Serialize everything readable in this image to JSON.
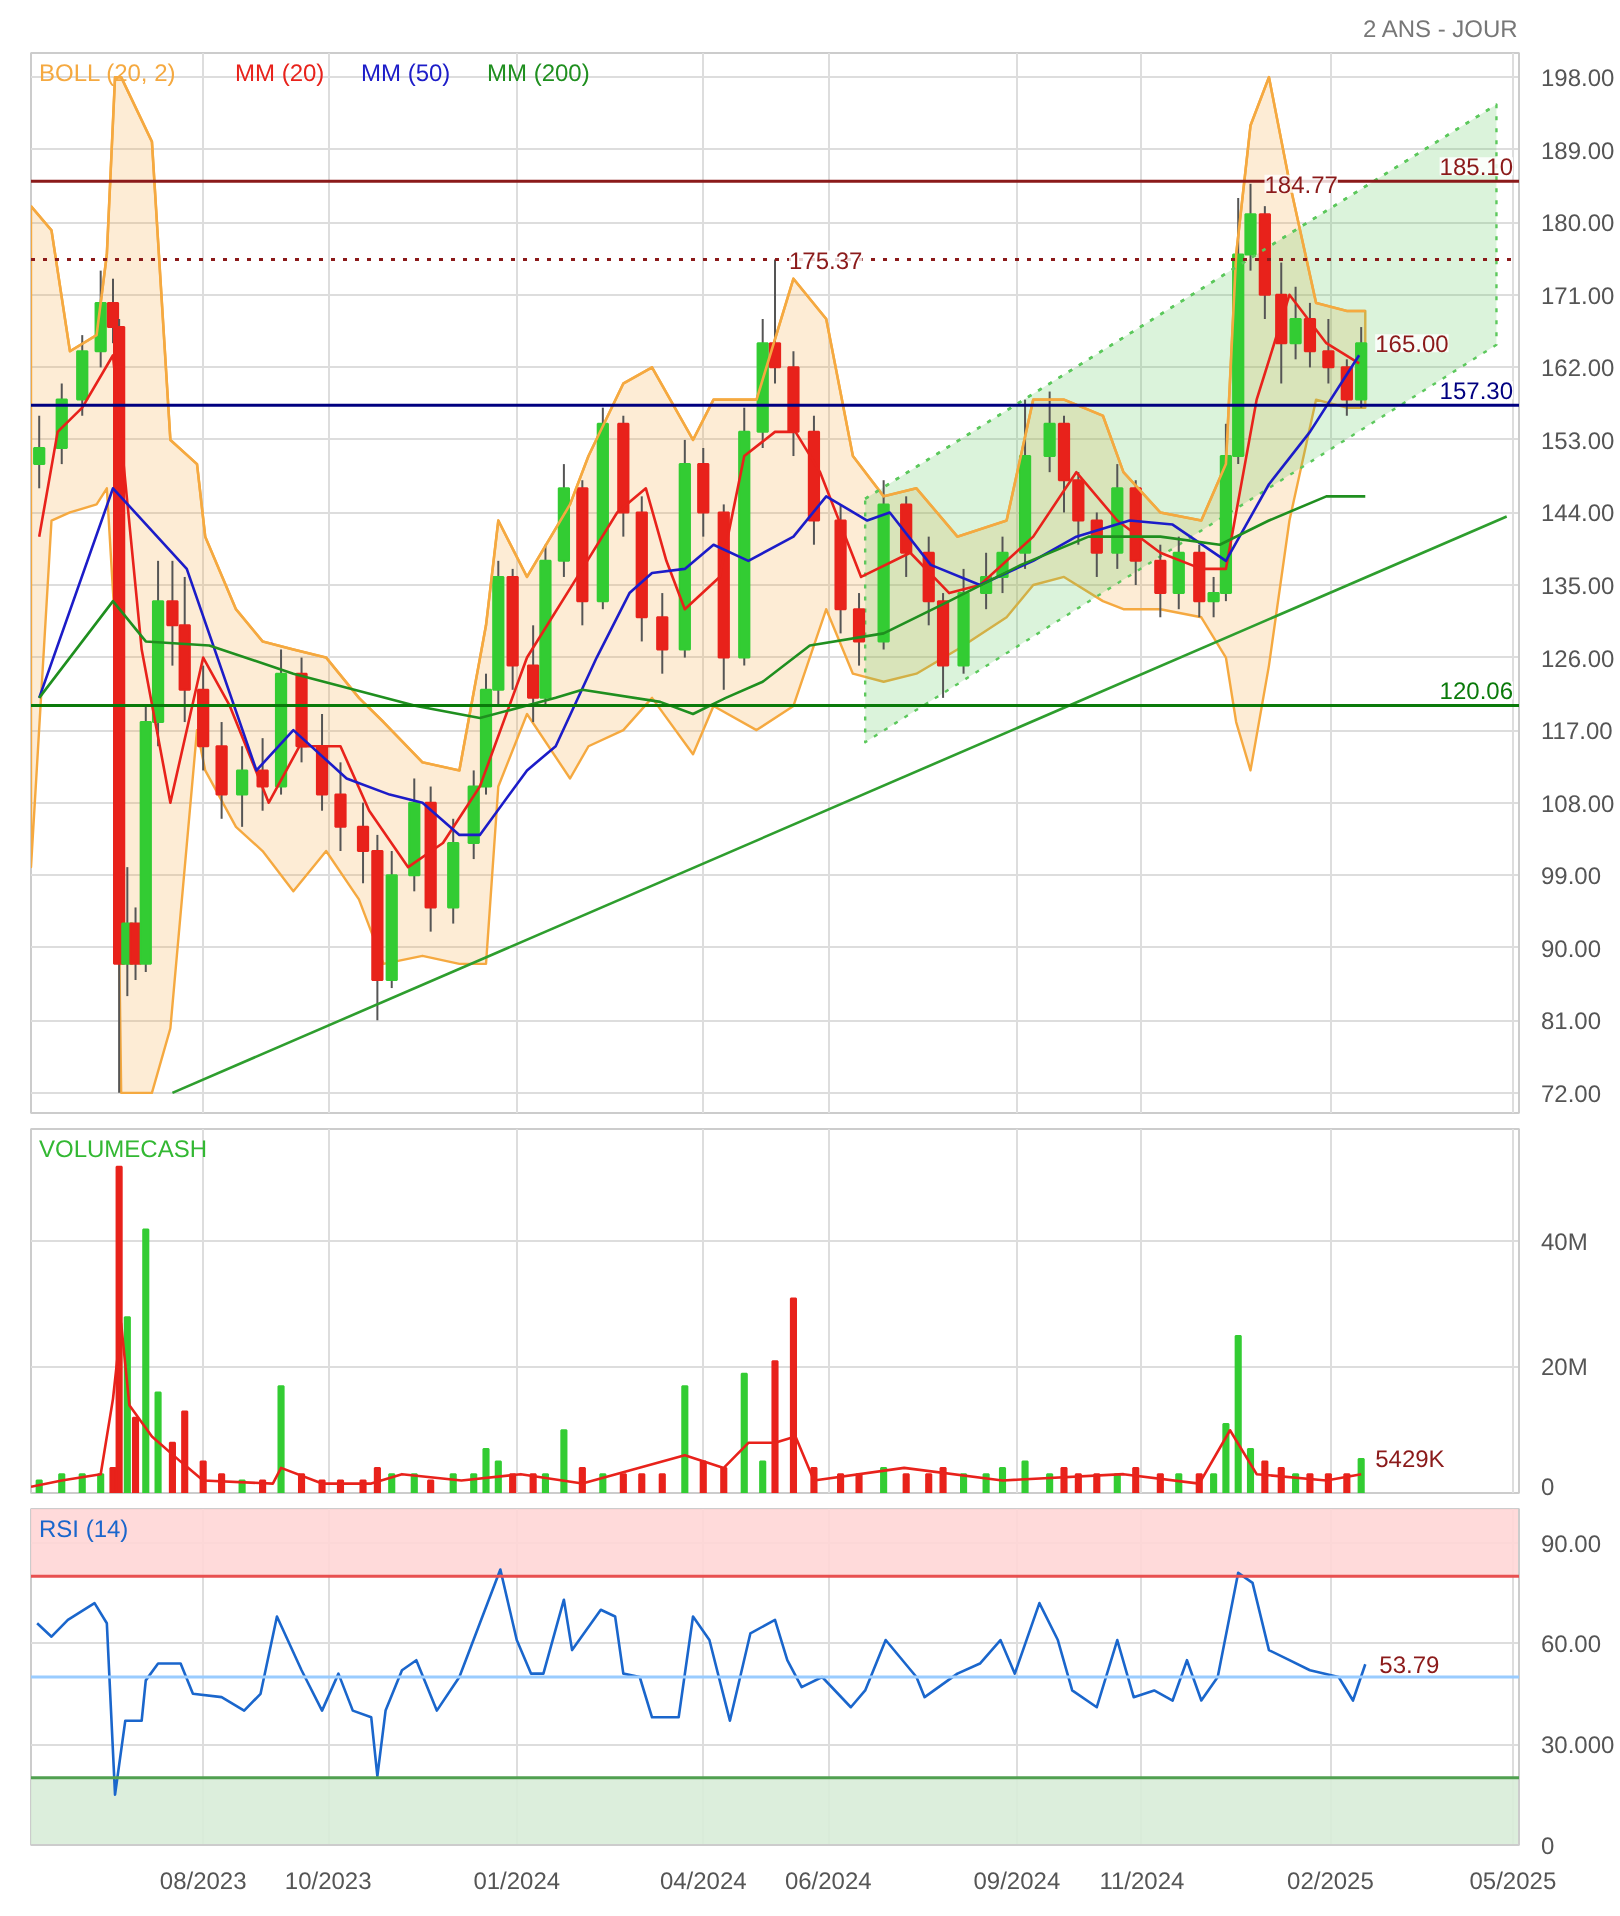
{
  "chart_data": [
    {
      "type": "candlestick",
      "title": "2 ANS - JOUR",
      "xlim": [
        "2023-05-09",
        "2025-05-04"
      ],
      "ylim": [
        69.5,
        201
      ],
      "grid": true,
      "tick_labels": "y",
      "legend": "top left",
      "xticks": [
        {
          "value": "2023-08-01",
          "label": null
        },
        {
          "value": "2023-10-01",
          "label": null
        },
        {
          "value": "2024-01-01",
          "label": null
        },
        {
          "value": "2024-04-01",
          "label": null
        },
        {
          "value": "2024-06-01",
          "label": null
        },
        {
          "value": "2024-09-01",
          "label": null
        },
        {
          "value": "2024-11-01",
          "label": null
        },
        {
          "value": "2025-02-01",
          "label": null
        },
        {
          "value": "2025-05-01",
          "label": null
        }
      ],
      "yticks": [
        {
          "value": 72,
          "label": "72.00"
        },
        {
          "value": 81,
          "label": "81.00"
        },
        {
          "value": 90,
          "label": "90.00"
        },
        {
          "value": 99,
          "label": "99.00"
        },
        {
          "value": 108,
          "label": "108.00"
        },
        {
          "value": 117,
          "label": "117.00"
        },
        {
          "value": 126,
          "label": "126.00"
        },
        {
          "value": 135,
          "label": "135.00"
        },
        {
          "value": 144,
          "label": "144.00"
        },
        {
          "value": 153,
          "label": "153.00"
        },
        {
          "value": 162,
          "label": "162.00"
        },
        {
          "value": 171,
          "label": "171.00"
        },
        {
          "value": 180,
          "label": "180.00"
        },
        {
          "value": 189,
          "label": "189.00"
        },
        {
          "value": 198,
          "label": "198.00"
        }
      ],
      "x": [
        "2023-05-13",
        "2023-05-24",
        "2023-06-03",
        "2023-06-12",
        "2023-06-18",
        "2023-06-21",
        "2023-06-25",
        "2023-06-29",
        "2023-07-04",
        "2023-07-10",
        "2023-07-17",
        "2023-07-23",
        "2023-08-01",
        "2023-08-10",
        "2023-08-20",
        "2023-08-30",
        "2023-09-08",
        "2023-09-18",
        "2023-09-28",
        "2023-10-07",
        "2023-10-18",
        "2023-10-25",
        "2023-11-01",
        "2023-11-12",
        "2023-11-20",
        "2023-12-01",
        "2023-12-11",
        "2023-12-17",
        "2023-12-23",
        "2023-12-30",
        "2024-01-09",
        "2024-01-15",
        "2024-01-24",
        "2024-02-02",
        "2024-02-12",
        "2024-02-22",
        "2024-03-02",
        "2024-03-12",
        "2024-03-23",
        "2024-04-01",
        "2024-04-11",
        "2024-04-21",
        "2024-04-30",
        "2024-05-06",
        "2024-05-15",
        "2024-05-25",
        "2024-06-07",
        "2024-06-16",
        "2024-06-28",
        "2024-07-09",
        "2024-07-20",
        "2024-07-27",
        "2024-08-06",
        "2024-08-17",
        "2024-08-25",
        "2024-09-05",
        "2024-09-17",
        "2024-09-24",
        "2024-10-01",
        "2024-10-10",
        "2024-10-20",
        "2024-10-29",
        "2024-11-10",
        "2024-11-19",
        "2024-11-29",
        "2024-12-06",
        "2024-12-12",
        "2024-12-18",
        "2024-12-24",
        "2024-12-31",
        "2025-01-08",
        "2025-01-15",
        "2025-01-22",
        "2025-01-31",
        "2025-02-09",
        "2025-02-16"
      ],
      "ohlc": [
        [
          150,
          156,
          147,
          152
        ],
        [
          152,
          160,
          150,
          158
        ],
        [
          158,
          166,
          156,
          164
        ],
        [
          164,
          174,
          162,
          170
        ],
        [
          170,
          173,
          165,
          167
        ],
        [
          167,
          168,
          72,
          88
        ],
        [
          88,
          100,
          84,
          93
        ],
        [
          93,
          95,
          86,
          88
        ],
        [
          88,
          120,
          87,
          118
        ],
        [
          118,
          138,
          115,
          133
        ],
        [
          133,
          138,
          125,
          130
        ],
        [
          130,
          136,
          118,
          122
        ],
        [
          122,
          125,
          112,
          115
        ],
        [
          115,
          118,
          106,
          109
        ],
        [
          109,
          115,
          105,
          112
        ],
        [
          112,
          116,
          107,
          110
        ],
        [
          110,
          127,
          109,
          124
        ],
        [
          124,
          126,
          113,
          115
        ],
        [
          115,
          119,
          107,
          109
        ],
        [
          109,
          113,
          102,
          105
        ],
        [
          105,
          108,
          98,
          102
        ],
        [
          102,
          104,
          81,
          86
        ],
        [
          86,
          102,
          85,
          99
        ],
        [
          99,
          111,
          97,
          108
        ],
        [
          108,
          110,
          92,
          95
        ],
        [
          95,
          106,
          93,
          103
        ],
        [
          103,
          112,
          101,
          110
        ],
        [
          110,
          124,
          109,
          122
        ],
        [
          122,
          138,
          120,
          136
        ],
        [
          136,
          137,
          122,
          125
        ],
        [
          125,
          130,
          118,
          121
        ],
        [
          121,
          140,
          120,
          138
        ],
        [
          138,
          150,
          136,
          147
        ],
        [
          147,
          148,
          130,
          133
        ],
        [
          133,
          157,
          132,
          155
        ],
        [
          155,
          156,
          141,
          144
        ],
        [
          144,
          146,
          128,
          131
        ],
        [
          131,
          134,
          124,
          127
        ],
        [
          127,
          153,
          126,
          150
        ],
        [
          150,
          152,
          141,
          144
        ],
        [
          144,
          145,
          122,
          126
        ],
        [
          126,
          157,
          125,
          154
        ],
        [
          154,
          168,
          152,
          165
        ],
        [
          165,
          175.37,
          160,
          162
        ],
        [
          162,
          164,
          151,
          154
        ],
        [
          154,
          156,
          140,
          143
        ],
        [
          143,
          145,
          129,
          132
        ],
        [
          132,
          134,
          125,
          128
        ],
        [
          128,
          148,
          127,
          145
        ],
        [
          145,
          146,
          136,
          139
        ],
        [
          139,
          141,
          130,
          133
        ],
        [
          133,
          134,
          121,
          125
        ],
        [
          125,
          137,
          124,
          134
        ],
        [
          134,
          139,
          132,
          136
        ],
        [
          136,
          141,
          134,
          139
        ],
        [
          139,
          158,
          137,
          151
        ],
        [
          151,
          159,
          149,
          155
        ],
        [
          155,
          156,
          144,
          148
        ],
        [
          148,
          149,
          140,
          143
        ],
        [
          143,
          144,
          136,
          139
        ],
        [
          139,
          150,
          137,
          147
        ],
        [
          147,
          148,
          135,
          138
        ],
        [
          138,
          140,
          131,
          134
        ],
        [
          134,
          141,
          132,
          139
        ],
        [
          139,
          140,
          131,
          133
        ],
        [
          133,
          136,
          131,
          134
        ],
        [
          134,
          155,
          133,
          151
        ],
        [
          151,
          183,
          150,
          176
        ],
        [
          176,
          184.77,
          174,
          181
        ],
        [
          181,
          182,
          168,
          171
        ],
        [
          171,
          175,
          160,
          165
        ],
        [
          165,
          172,
          163,
          168
        ],
        [
          168,
          170,
          162,
          164
        ],
        [
          164,
          168,
          160,
          162
        ],
        [
          162,
          163,
          156,
          158
        ],
        [
          158,
          167,
          157,
          165
        ]
      ],
      "series": [
        {
          "name": "BOLL (20, 2)",
          "type": "line",
          "color": "#f5a940",
          "x": [
            "2023-05-09",
            "2023-05-19",
            "2023-05-28",
            "2023-06-10",
            "2023-06-15",
            "2023-06-19",
            "2023-06-22",
            "2023-07-07",
            "2023-07-16",
            "2023-07-29",
            "2023-08-02",
            "2023-08-17",
            "2023-08-30",
            "2023-09-14",
            "2023-09-30",
            "2023-10-16",
            "2023-10-28",
            "2023-11-16",
            "2023-12-04",
            "2023-12-17",
            "2023-12-23",
            "2024-01-06",
            "2024-01-27",
            "2024-02-05",
            "2024-02-22",
            "2024-03-07",
            "2024-03-27",
            "2024-04-06",
            "2024-04-27",
            "2024-05-15",
            "2024-05-31",
            "2024-06-13",
            "2024-06-28",
            "2024-07-14",
            "2024-08-03",
            "2024-08-27",
            "2024-09-09",
            "2024-09-24",
            "2024-10-13",
            "2024-10-23",
            "2024-11-10",
            "2024-11-30",
            "2024-12-12",
            "2024-12-17",
            "2024-12-24",
            "2025-01-02",
            "2025-01-12",
            "2025-01-25",
            "2025-02-09",
            "2025-02-18"
          ],
          "values": [
            182,
            179,
            164,
            166,
            176,
            198,
            198,
            190,
            153,
            150,
            141,
            132,
            128,
            127,
            126,
            121,
            118,
            113,
            112,
            130,
            143,
            136,
            145,
            151,
            160,
            162,
            153,
            158,
            158,
            173,
            168,
            151,
            146,
            147,
            141,
            143,
            158,
            158,
            156,
            149,
            144,
            143,
            150,
            176,
            192,
            198,
            185,
            170,
            169,
            169
          ],
          "upper": [
            182,
            179,
            164,
            166,
            176,
            198,
            198,
            190,
            153,
            150,
            141,
            132,
            128,
            127,
            126,
            121,
            118,
            113,
            112,
            130,
            143,
            136,
            145,
            151,
            160,
            162,
            153,
            158,
            158,
            173,
            168,
            151,
            146,
            147,
            141,
            143,
            158,
            158,
            156,
            149,
            144,
            143,
            150,
            176,
            192,
            198,
            185,
            170,
            169,
            169
          ],
          "lower": [
            100,
            143,
            144,
            145,
            147,
            130,
            72,
            72,
            80,
            117,
            112,
            105,
            102,
            97,
            102,
            96,
            88,
            89,
            88,
            88,
            110,
            119,
            111,
            115,
            117,
            121,
            114,
            120,
            117,
            120,
            132,
            124,
            123,
            124,
            127,
            131,
            135,
            136,
            133,
            132,
            132,
            131,
            126,
            118,
            112,
            125,
            143,
            158,
            157,
            157
          ]
        },
        {
          "name": "MM (20)",
          "type": "line",
          "color": "#e8221b",
          "x": [
            "2023-05-13",
            "2023-05-22",
            "2023-06-03",
            "2023-06-18",
            "2023-07-02",
            "2023-07-16",
            "2023-08-01",
            "2023-08-14",
            "2023-09-02",
            "2023-09-17",
            "2023-10-07",
            "2023-10-21",
            "2023-11-09",
            "2023-11-26",
            "2023-12-14",
            "2024-01-06",
            "2024-02-02",
            "2024-02-19",
            "2024-03-04",
            "2024-03-14",
            "2024-03-23",
            "2024-04-09",
            "2024-04-21",
            "2024-05-06",
            "2024-05-16",
            "2024-05-28",
            "2024-06-17",
            "2024-07-11",
            "2024-07-30",
            "2024-08-14",
            "2024-09-09",
            "2024-09-30",
            "2024-10-20",
            "2024-11-10",
            "2024-11-30",
            "2024-12-12",
            "2024-12-27",
            "2025-01-12",
            "2025-01-30",
            "2025-02-15"
          ],
          "values": [
            141,
            154,
            157,
            163.5,
            127,
            108,
            126,
            120,
            108,
            115,
            115,
            107,
            100,
            103,
            110,
            126,
            137,
            144,
            147,
            138,
            132,
            136,
            151,
            154,
            154,
            149,
            136,
            139,
            134,
            135,
            141,
            149,
            143,
            139,
            137,
            137,
            158,
            171,
            165,
            162.5
          ]
        },
        {
          "name": "MM (50)",
          "type": "line",
          "color": "#1c1cc8",
          "x": [
            "2023-05-13",
            "2023-06-18",
            "2023-07-24",
            "2023-08-27",
            "2023-09-14",
            "2023-10-10",
            "2023-10-31",
            "2023-11-16",
            "2023-12-04",
            "2023-12-14",
            "2024-01-06",
            "2024-01-20",
            "2024-02-09",
            "2024-02-25",
            "2024-03-07",
            "2024-03-23",
            "2024-04-06",
            "2024-04-23",
            "2024-05-15",
            "2024-05-31",
            "2024-06-20",
            "2024-07-01",
            "2024-07-21",
            "2024-08-14",
            "2024-09-09",
            "2024-09-30",
            "2024-10-26",
            "2024-11-16",
            "2024-12-12",
            "2025-01-02",
            "2025-01-22",
            "2025-02-15"
          ],
          "values": [
            121,
            147,
            137,
            112,
            117,
            111,
            109,
            108,
            104,
            104,
            112,
            115,
            126,
            134,
            136.5,
            137,
            140,
            138,
            141,
            146,
            143,
            144,
            137.5,
            135,
            138,
            141,
            143,
            142.5,
            138,
            147.5,
            154,
            163.5
          ]
        },
        {
          "name": "MM (200)",
          "type": "line",
          "color": "#1f8f1f",
          "x": [
            "2023-05-13",
            "2023-06-18",
            "2023-07-04",
            "2023-08-04",
            "2023-09-14",
            "2023-11-13",
            "2023-12-14",
            "2024-01-20",
            "2024-02-02",
            "2024-03-11",
            "2024-03-27",
            "2024-04-12",
            "2024-04-30",
            "2024-05-23",
            "2024-06-28",
            "2024-07-30",
            "2024-09-03",
            "2024-10-06",
            "2024-11-10",
            "2024-12-09",
            "2025-01-02",
            "2025-01-30",
            "2025-02-18"
          ],
          "values": [
            121,
            133,
            128,
            127.5,
            124,
            120,
            118.5,
            121,
            122,
            120.5,
            119,
            121,
            123,
            127.5,
            129,
            133,
            137.5,
            141,
            141,
            140,
            143,
            146,
            146
          ]
        },
        {
          "type": "line",
          "color": "#5cc85c",
          "line_style": "dotted",
          "x": [
            "2024-06-19",
            "2025-04-23"
          ],
          "values": [
            145.7,
            194.6
          ],
          "upper": [
            145.7,
            194.6
          ],
          "lower": [
            115.5,
            164.8
          ]
        },
        {
          "type": "line",
          "color": "#2e9e2e",
          "x": [
            "2023-07-17",
            "2025-04-28"
          ],
          "values": [
            72,
            143.5
          ]
        }
      ],
      "ref_lines": [
        {
          "axis": "y",
          "value": 120.06,
          "label": "120.06",
          "color": "#0a7a0a"
        },
        {
          "axis": "y",
          "value": 175.37,
          "color": "#8b1a1a",
          "line_style": "dotted"
        },
        {
          "axis": "y",
          "value": 185.1,
          "label": "185.10",
          "color": "#8b1a1a"
        },
        {
          "axis": "y",
          "value": 157.3,
          "label": "157.30",
          "color": "#000080"
        }
      ],
      "annotations": [
        {
          "text": "175.37",
          "x": "2024-05-06",
          "y": 175.37
        },
        {
          "text": "184.77",
          "x": "2024-12-24",
          "y": 184.77
        },
        {
          "text": "165.00",
          "x": "2025-02-16",
          "y": 165
        }
      ]
    },
    {
      "type": "bar",
      "xlim": [
        "2023-05-09",
        "2025-05-04"
      ],
      "ylim": [
        0,
        58
      ],
      "grid": true,
      "tick_labels": "y",
      "legend": "top left",
      "xticks": [
        {
          "value": "2023-08-01",
          "label": null
        },
        {
          "value": "2023-10-01",
          "label": null
        },
        {
          "value": "2024-01-01",
          "label": null
        },
        {
          "value": "2024-04-01",
          "label": null
        },
        {
          "value": "2024-06-01",
          "label": null
        },
        {
          "value": "2024-09-01",
          "label": null
        },
        {
          "value": "2024-11-01",
          "label": null
        },
        {
          "value": "2025-02-01",
          "label": null
        },
        {
          "value": "2025-05-01",
          "label": null
        }
      ],
      "yticks": [
        0,
        {
          "value": 20,
          "label": "20M"
        },
        {
          "value": 40,
          "label": "40M"
        }
      ],
      "x": [
        "2023-05-13",
        "2023-05-24",
        "2023-06-03",
        "2023-06-12",
        "2023-06-18",
        "2023-06-21",
        "2023-06-25",
        "2023-06-29",
        "2023-07-04",
        "2023-07-10",
        "2023-07-17",
        "2023-07-23",
        "2023-08-01",
        "2023-08-10",
        "2023-08-20",
        "2023-08-30",
        "2023-09-08",
        "2023-09-18",
        "2023-09-28",
        "2023-10-07",
        "2023-10-18",
        "2023-10-25",
        "2023-11-01",
        "2023-11-12",
        "2023-11-20",
        "2023-12-01",
        "2023-12-11",
        "2023-12-17",
        "2023-12-23",
        "2023-12-30",
        "2024-01-09",
        "2024-01-15",
        "2024-01-24",
        "2024-02-02",
        "2024-02-12",
        "2024-02-22",
        "2024-03-02",
        "2024-03-12",
        "2024-03-23",
        "2024-04-01",
        "2024-04-11",
        "2024-04-21",
        "2024-04-30",
        "2024-05-06",
        "2024-05-15",
        "2024-05-25",
        "2024-06-07",
        "2024-06-16",
        "2024-06-28",
        "2024-07-09",
        "2024-07-20",
        "2024-07-27",
        "2024-08-06",
        "2024-08-17",
        "2024-08-25",
        "2024-09-05",
        "2024-09-17",
        "2024-09-24",
        "2024-10-01",
        "2024-10-10",
        "2024-10-20",
        "2024-10-29",
        "2024-11-10",
        "2024-11-19",
        "2024-11-29",
        "2024-12-06",
        "2024-12-12",
        "2024-12-18",
        "2024-12-24",
        "2024-12-31",
        "2025-01-08",
        "2025-01-15",
        "2025-01-22",
        "2025-01-31",
        "2025-02-09",
        "2025-02-16"
      ],
      "series": [
        {
          "name": "VOLUMECASH",
          "type": "bar",
          "color": "#33b833",
          "values": [
            2,
            3,
            3,
            3,
            4,
            52,
            28,
            12,
            42,
            16,
            8,
            13,
            5,
            3,
            2,
            2,
            17,
            3,
            2,
            2,
            2,
            4,
            3,
            3,
            2,
            3,
            3,
            7,
            5,
            3,
            3,
            3,
            10,
            4,
            3,
            3,
            3,
            3,
            17,
            5,
            4,
            19,
            5,
            21,
            31,
            4,
            3,
            3,
            4,
            3,
            3,
            4,
            3,
            3,
            4,
            5,
            3,
            4,
            3,
            3,
            3,
            4,
            3,
            3,
            3,
            3,
            11,
            25,
            7,
            5,
            4,
            3,
            3,
            3,
            3,
            5.429
          ],
          "colors": [
            "#33cc33",
            "#33cc33",
            "#33cc33",
            "#33cc33",
            "#e8221b",
            "#e8221b",
            "#33cc33",
            "#e8221b",
            "#33cc33",
            "#33cc33",
            "#e8221b",
            "#e8221b",
            "#e8221b",
            "#e8221b",
            "#33cc33",
            "#e8221b",
            "#33cc33",
            "#e8221b",
            "#e8221b",
            "#e8221b",
            "#e8221b",
            "#e8221b",
            "#33cc33",
            "#33cc33",
            "#e8221b",
            "#33cc33",
            "#33cc33",
            "#33cc33",
            "#33cc33",
            "#e8221b",
            "#e8221b",
            "#33cc33",
            "#33cc33",
            "#e8221b",
            "#33cc33",
            "#e8221b",
            "#e8221b",
            "#e8221b",
            "#33cc33",
            "#e8221b",
            "#e8221b",
            "#33cc33",
            "#33cc33",
            "#e8221b",
            "#e8221b",
            "#e8221b",
            "#e8221b",
            "#e8221b",
            "#33cc33",
            "#e8221b",
            "#e8221b",
            "#e8221b",
            "#33cc33",
            "#33cc33",
            "#33cc33",
            "#33cc33",
            "#33cc33",
            "#e8221b",
            "#e8221b",
            "#e8221b",
            "#33cc33",
            "#e8221b",
            "#e8221b",
            "#33cc33",
            "#e8221b",
            "#33cc33",
            "#33cc33",
            "#33cc33",
            "#33cc33",
            "#e8221b",
            "#e8221b",
            "#33cc33",
            "#e8221b",
            "#e8221b",
            "#e8221b",
            "#33cc33"
          ]
        },
        {
          "type": "line",
          "color": "#e8221b",
          "x": [
            "2023-05-09",
            "2023-05-24",
            "2023-06-12",
            "2023-06-18",
            "2023-06-22",
            "2023-06-26",
            "2023-07-07",
            "2023-07-21",
            "2023-08-01",
            "2023-09-04",
            "2023-09-08",
            "2023-09-28",
            "2023-10-22",
            "2023-11-06",
            "2023-12-05",
            "2024-01-03",
            "2024-02-02",
            "2024-03-23",
            "2024-04-11",
            "2024-04-23",
            "2024-05-06",
            "2024-05-16",
            "2024-05-25",
            "2024-07-08",
            "2024-08-25",
            "2024-10-23",
            "2024-11-29",
            "2024-12-14",
            "2024-12-27",
            "2025-01-30",
            "2025-02-16"
          ],
          "values": [
            1,
            2,
            3,
            15,
            27,
            14,
            9,
            5,
            2,
            1.5,
            4,
            1.5,
            1.5,
            3,
            2,
            3,
            1.5,
            6,
            4,
            8,
            8,
            9,
            2,
            4,
            2,
            3,
            1.5,
            10,
            3,
            2,
            3
          ]
        }
      ],
      "annotations": [
        {
          "text": "5429K",
          "x": "2025-02-16",
          "y": 5.429
        }
      ]
    },
    {
      "type": "line",
      "xlim": [
        "2023-05-09",
        "2025-05-04"
      ],
      "ylim": [
        0,
        100
      ],
      "grid": true,
      "legend": "top left",
      "xticks": [
        {
          "value": "2023-08-01",
          "label": "08/2023"
        },
        {
          "value": "2023-10-01",
          "label": "10/2023"
        },
        {
          "value": "2024-01-01",
          "label": "01/2024"
        },
        {
          "value": "2024-04-01",
          "label": "04/2024"
        },
        {
          "value": "2024-06-01",
          "label": "06/2024"
        },
        {
          "value": "2024-09-01",
          "label": "09/2024"
        },
        {
          "value": "2024-11-01",
          "label": "11/2024"
        },
        {
          "value": "2025-02-01",
          "label": "02/2025"
        },
        {
          "value": "2025-05-01",
          "label": "05/2025"
        }
      ],
      "yticks": [
        0,
        {
          "value": 30,
          "label": "30.000"
        },
        {
          "value": 60,
          "label": "60.00"
        },
        {
          "value": 90,
          "label": "90.00"
        }
      ],
      "x": [
        "2023-05-12",
        "2023-05-19",
        "2023-05-27",
        "2023-06-09",
        "2023-06-15",
        "2023-06-19",
        "2023-06-24",
        "2023-07-02",
        "2023-07-04",
        "2023-07-10",
        "2023-07-21",
        "2023-07-27",
        "2023-08-10",
        "2023-08-21",
        "2023-08-29",
        "2023-09-06",
        "2023-09-18",
        "2023-09-28",
        "2023-10-06",
        "2023-10-13",
        "2023-10-22",
        "2023-10-25",
        "2023-10-29",
        "2023-11-06",
        "2023-11-13",
        "2023-11-23",
        "2023-12-04",
        "2023-12-14",
        "2023-12-24",
        "2024-01-01",
        "2024-01-08",
        "2024-01-14",
        "2024-01-24",
        "2024-01-28",
        "2024-02-11",
        "2024-02-18",
        "2024-02-22",
        "2024-03-01",
        "2024-03-07",
        "2024-03-20",
        "2024-03-27",
        "2024-04-04",
        "2024-04-14",
        "2024-04-24",
        "2024-05-06",
        "2024-05-12",
        "2024-05-19",
        "2024-05-29",
        "2024-06-12",
        "2024-06-19",
        "2024-06-29",
        "2024-07-14",
        "2024-07-18",
        "2024-08-03",
        "2024-08-14",
        "2024-08-24",
        "2024-08-31",
        "2024-09-12",
        "2024-09-21",
        "2024-09-28",
        "2024-10-10",
        "2024-10-20",
        "2024-10-28",
        "2024-11-07",
        "2024-11-16",
        "2024-11-23",
        "2024-11-30",
        "2024-12-08",
        "2024-12-18",
        "2024-12-25",
        "2025-01-02",
        "2025-01-12",
        "2025-01-22",
        "2025-02-05",
        "2025-02-12",
        "2025-02-18"
      ],
      "series": [
        {
          "name": "RSI (14)",
          "color": "#1a66cc",
          "values": [
            66,
            62,
            67,
            72,
            66,
            15,
            37,
            37,
            49,
            54,
            54,
            45,
            44,
            40,
            45,
            68,
            52,
            40,
            51,
            40,
            38,
            20.5,
            40,
            52,
            55,
            40,
            50,
            66,
            82,
            61,
            51,
            51,
            73,
            58,
            70,
            68,
            51,
            50,
            38,
            38,
            68,
            61,
            37,
            63,
            67,
            55,
            47,
            50,
            41,
            46,
            61,
            50,
            44,
            51,
            54,
            61,
            51,
            72,
            61,
            46,
            41,
            61,
            44,
            46,
            43,
            55,
            43,
            50,
            81,
            78,
            58,
            55,
            52,
            50,
            43,
            53.79
          ]
        }
      ],
      "bands": [
        {
          "axis": "y",
          "from": 80,
          "to": 100,
          "color": "#ffd6d6"
        },
        {
          "axis": "y",
          "from": 0,
          "to": 20,
          "color": "#d8ecd8"
        }
      ],
      "ref_lines": [
        {
          "axis": "y",
          "value": 80,
          "color": "#e85050"
        },
        {
          "axis": "y",
          "value": 20,
          "color": "#50a050"
        },
        {
          "axis": "y",
          "value": 50,
          "color": "#99ccff"
        }
      ],
      "annotations": [
        {
          "text": "53.79",
          "x": "2025-02-18",
          "y": 53.79
        }
      ]
    }
  ]
}
